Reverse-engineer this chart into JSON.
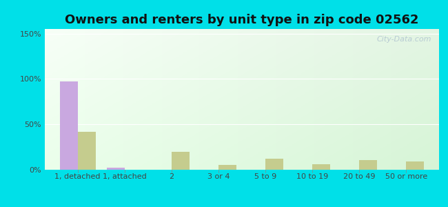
{
  "title": "Owners and renters by unit type in zip code 02562",
  "categories": [
    "1, detached",
    "1, attached",
    "2",
    "3 or 4",
    "5 to 9",
    "10 to 19",
    "20 to 49",
    "50 or more"
  ],
  "owner_values": [
    97,
    2,
    0,
    0,
    0,
    0,
    0,
    0
  ],
  "renter_values": [
    42,
    0,
    20,
    5,
    12,
    6,
    11,
    9
  ],
  "owner_color": "#c9a8e0",
  "renter_color": "#c5cc8e",
  "background_outer": "#00e0e8",
  "ylim": [
    0,
    155
  ],
  "ytick_values": [
    0,
    50,
    100,
    150
  ],
  "ylabel_ticks": [
    "0%",
    "50%",
    "100%",
    "150%"
  ],
  "bar_width": 0.38,
  "title_fontsize": 13,
  "tick_fontsize": 8,
  "legend_fontsize": 9,
  "watermark": "City-Data.com"
}
